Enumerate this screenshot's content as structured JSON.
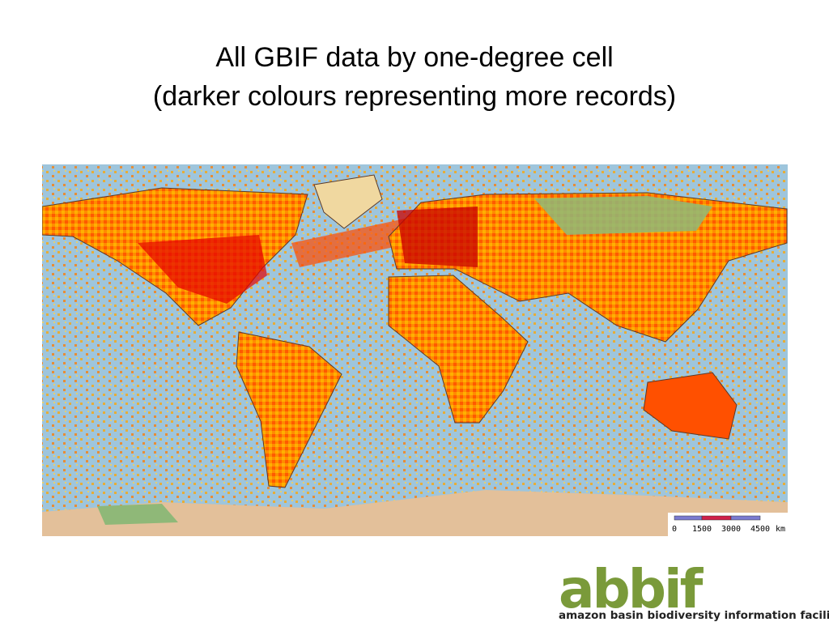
{
  "title": {
    "line1": "All GBIF data by one-degree cell",
    "line2": "(darker colours representing more records)"
  },
  "scale_bar": {
    "labels": [
      "0",
      "1500",
      "3000",
      "4500"
    ],
    "unit": "km"
  },
  "logo": {
    "mark": "abbif",
    "text": "amazon basin biodiversity information facility"
  }
}
